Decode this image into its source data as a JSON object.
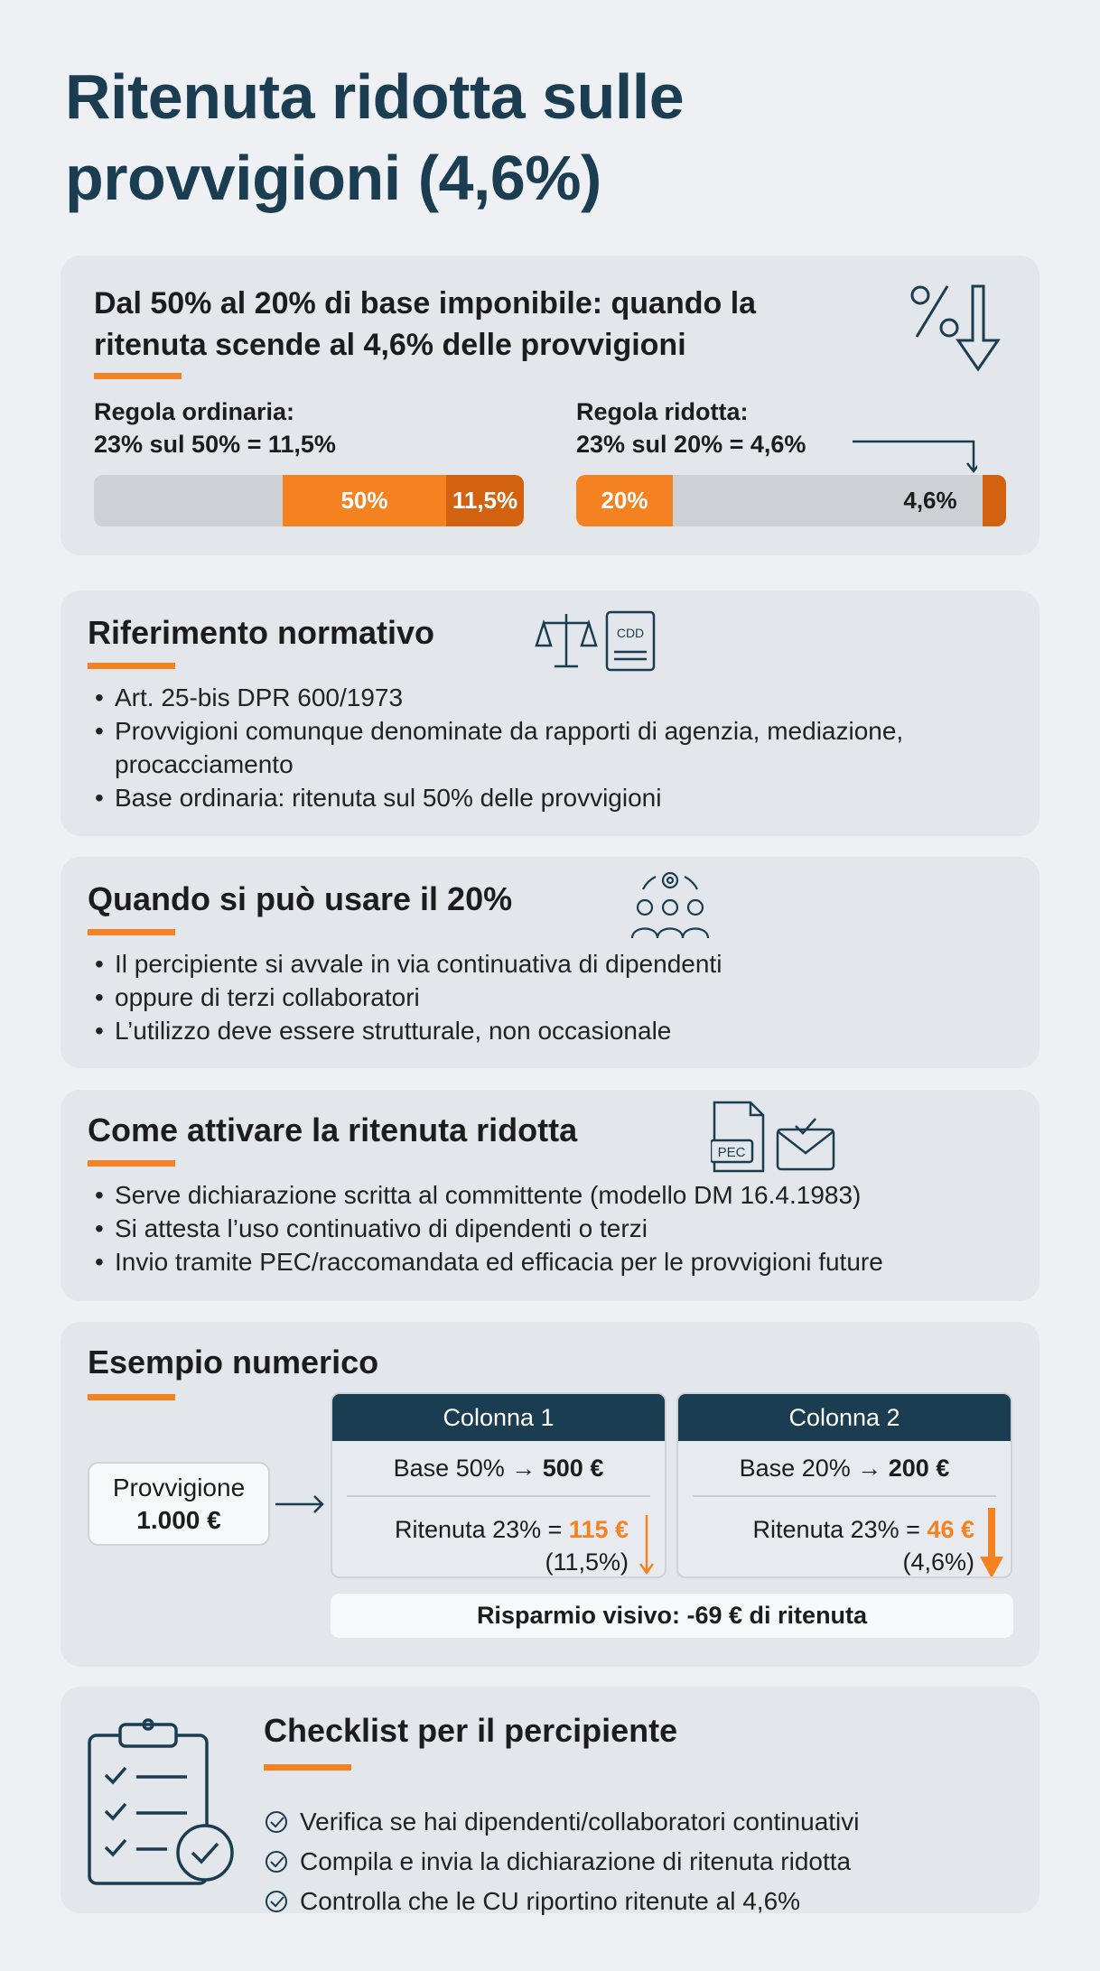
{
  "title": {
    "line1": "Ritenuta ridotta sulle",
    "line2": "provvigioni (4,6%)"
  },
  "intro": {
    "heading_line1": "Dal 50% al 20% di base imponibile: quando la",
    "heading_line2": "ritenuta scende al 4,6% delle provvigioni",
    "ordinary": {
      "label": "Regola ordinaria:",
      "formula": "23% sul 50% = 11,5%",
      "base_pct": 50,
      "withholding_pct": 11.5,
      "base_label": "50%",
      "withholding_label": "11,5%"
    },
    "reduced": {
      "label": "Regola ridotta:",
      "formula": "23% sul 20% = 4,6%",
      "base_pct": 20,
      "withholding_pct": 4.6,
      "base_label": "20%",
      "withholding_label": "4,6%"
    },
    "colors": {
      "orange": "#f58220",
      "dark_orange": "#d2620f",
      "navy": "#1a3d52"
    }
  },
  "riferimento": {
    "heading": "Riferimento normativo",
    "icon_text": "CDD",
    "items": [
      "Art. 25-bis DPR 600/1973",
      "Provvigioni comunque denominate da rapporti di agenzia, mediazione, procacciamento",
      "Base ordinaria: ritenuta sul 50% delle provvigioni"
    ]
  },
  "quando": {
    "heading": "Quando si può usare il 20%",
    "items": [
      "Il percipiente si avvale in via continuativa di dipendenti",
      "oppure di terzi collaboratori",
      "L’utilizzo deve essere strutturale, non occasionale"
    ]
  },
  "come": {
    "heading": "Come attivare la ritenuta ridotta",
    "icon_text": "PEC",
    "items": [
      "Serve dichiarazione scritta al committente (modello DM 16.4.1983)",
      "Si attesta l’uso continuativo di dipendenti o terzi",
      "Invio tramite PEC/raccomandata ed efficacia per le provvigioni future"
    ]
  },
  "esempio": {
    "heading": "Esempio numerico",
    "provvigione_label": "Provvigione",
    "provvigione_value": "1.000 €",
    "columns": [
      {
        "header": "Colonna 1",
        "base_text": "Base 50% →",
        "base_value": "500 €",
        "rit_text": "Ritenuta 23% =",
        "rit_value": "115 €",
        "rit_pct": "(11,5%)"
      },
      {
        "header": "Colonna 2",
        "base_text": "Base 20% →",
        "base_value": "200 €",
        "rit_text": "Ritenuta 23% =",
        "rit_value": "46 €",
        "rit_pct": "(4,6%)"
      }
    ],
    "savings": "Risparmio visivo: -69 € di ritenuta"
  },
  "checklist": {
    "heading": "Checklist per il percipiente",
    "items": [
      "Verifica se hai dipendenti/collaboratori continuativi",
      "Compila e invia la dichiarazione di ritenuta ridotta",
      "Controlla che le CU riportino ritenute al 4,6%"
    ]
  }
}
